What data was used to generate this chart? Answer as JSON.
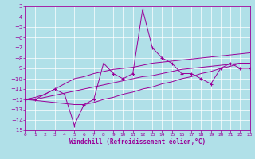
{
  "xlabel": "Windchill (Refroidissement éolien,°C)",
  "x_data": [
    0,
    1,
    2,
    3,
    4,
    5,
    6,
    7,
    8,
    9,
    10,
    11,
    12,
    13,
    14,
    15,
    16,
    17,
    18,
    19,
    20,
    21,
    22,
    23
  ],
  "main_line": [
    -12,
    -12,
    -11.5,
    -11,
    -11.5,
    -14.5,
    -12.5,
    -12,
    -8.5,
    -9.5,
    -10,
    -9.5,
    -3.3,
    -7,
    -8,
    -8.5,
    -9.5,
    -9.5,
    -10,
    -10.5,
    -9,
    -8.5,
    -9,
    -9
  ],
  "upper_line": [
    -12,
    -11.8,
    -11.5,
    -11,
    -10.5,
    -10,
    -9.8,
    -9.5,
    -9.3,
    -9.1,
    -9,
    -8.9,
    -8.7,
    -8.5,
    -8.4,
    -8.3,
    -8.2,
    -8.1,
    -8,
    -7.9,
    -7.8,
    -7.7,
    -7.6,
    -7.5
  ],
  "lower_line": [
    -12,
    -12.1,
    -12.2,
    -12.3,
    -12.4,
    -12.5,
    -12.5,
    -12.3,
    -12,
    -11.8,
    -11.5,
    -11.3,
    -11,
    -10.8,
    -10.5,
    -10.3,
    -10,
    -9.8,
    -9.5,
    -9.3,
    -9,
    -8.8,
    -8.5,
    -8.5
  ],
  "mid_line": [
    -12,
    -12,
    -11.8,
    -11.6,
    -11.4,
    -11.2,
    -11,
    -10.8,
    -10.6,
    -10.4,
    -10.2,
    -10,
    -9.8,
    -9.7,
    -9.5,
    -9.3,
    -9.1,
    -9,
    -8.9,
    -8.8,
    -8.7,
    -8.6,
    -8.5,
    -8.5
  ],
  "ylim": [
    -15,
    -3
  ],
  "xlim": [
    0,
    23
  ],
  "yticks": [
    -3,
    -4,
    -5,
    -6,
    -7,
    -8,
    -9,
    -10,
    -11,
    -12,
    -13,
    -14,
    -15
  ],
  "xticks": [
    0,
    1,
    2,
    3,
    4,
    5,
    6,
    7,
    8,
    9,
    10,
    11,
    12,
    13,
    14,
    15,
    16,
    17,
    18,
    19,
    20,
    21,
    22,
    23
  ],
  "line_color": "#990099",
  "bg_color": "#b0e0e8",
  "grid_color": "#ffffff",
  "tick_fontsize": 5,
  "xlabel_fontsize": 5.5
}
